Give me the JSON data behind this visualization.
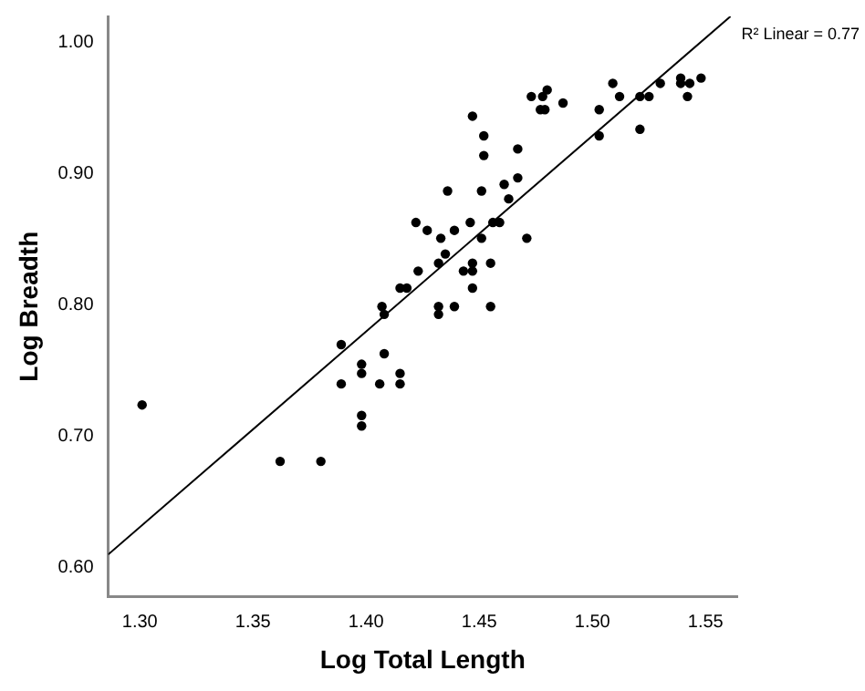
{
  "chart_data": {
    "type": "scatter",
    "xlabel": "Log Total Length",
    "ylabel": "Log Breadth",
    "annotations": [
      "R² Linear = 0.77"
    ],
    "grid": false,
    "legend": false,
    "marker": "circle",
    "xlim": [
      1.286,
      1.564
    ],
    "ylim": [
      0.578,
      1.02
    ],
    "xticks": [
      {
        "value": 1.3,
        "label": "1.30"
      },
      {
        "value": 1.35,
        "label": "1.35"
      },
      {
        "value": 1.4,
        "label": "1.40"
      },
      {
        "value": 1.45,
        "label": "1.45"
      },
      {
        "value": 1.5,
        "label": "1.50"
      },
      {
        "value": 1.55,
        "label": "1.55"
      }
    ],
    "yticks": [
      {
        "value": 0.6,
        "label": "0.60"
      },
      {
        "value": 0.7,
        "label": "0.70"
      },
      {
        "value": 0.8,
        "label": "0.80"
      },
      {
        "value": 0.9,
        "label": "0.90"
      },
      {
        "value": 1.0,
        "label": "1.00"
      }
    ],
    "series": [
      {
        "color": "#000000",
        "x": [
          1.447,
          1.452,
          1.452,
          1.436,
          1.451,
          1.422,
          1.427,
          1.446,
          1.439,
          1.433,
          1.451,
          1.435,
          1.432,
          1.423,
          1.443,
          1.447,
          1.447,
          1.455,
          1.415,
          1.418,
          1.447,
          1.407,
          1.408,
          1.432,
          1.432,
          1.439,
          1.455,
          1.467,
          1.473,
          1.478,
          1.48,
          1.477,
          1.479,
          1.487,
          1.509,
          1.512,
          1.503,
          1.503,
          1.521,
          1.525,
          1.521,
          1.53,
          1.539,
          1.539,
          1.543,
          1.548,
          1.542,
          1.467,
          1.461,
          1.463,
          1.456,
          1.459,
          1.471,
          1.389,
          1.301,
          1.408,
          1.398,
          1.398,
          1.389,
          1.406,
          1.415,
          1.415,
          1.398,
          1.398,
          1.362,
          1.38
        ],
        "values": [
          0.944,
          0.929,
          0.914,
          0.887,
          0.887,
          0.863,
          0.857,
          0.863,
          0.857,
          0.851,
          0.851,
          0.839,
          0.832,
          0.826,
          0.826,
          0.832,
          0.826,
          0.832,
          0.813,
          0.813,
          0.813,
          0.799,
          0.793,
          0.799,
          0.793,
          0.799,
          0.799,
          0.919,
          0.959,
          0.959,
          0.964,
          0.949,
          0.949,
          0.954,
          0.969,
          0.959,
          0.949,
          0.929,
          0.959,
          0.959,
          0.934,
          0.969,
          0.973,
          0.969,
          0.969,
          0.973,
          0.959,
          0.897,
          0.892,
          0.881,
          0.863,
          0.863,
          0.851,
          0.77,
          0.724,
          0.763,
          0.755,
          0.748,
          0.74,
          0.74,
          0.748,
          0.74,
          0.716,
          0.708,
          0.681,
          0.681
        ]
      },
      {
        "type": "line",
        "color": "#000000",
        "marker": "none",
        "x": [
          1.286,
          1.561
        ],
        "values": [
          0.61,
          1.02
        ]
      }
    ]
  }
}
